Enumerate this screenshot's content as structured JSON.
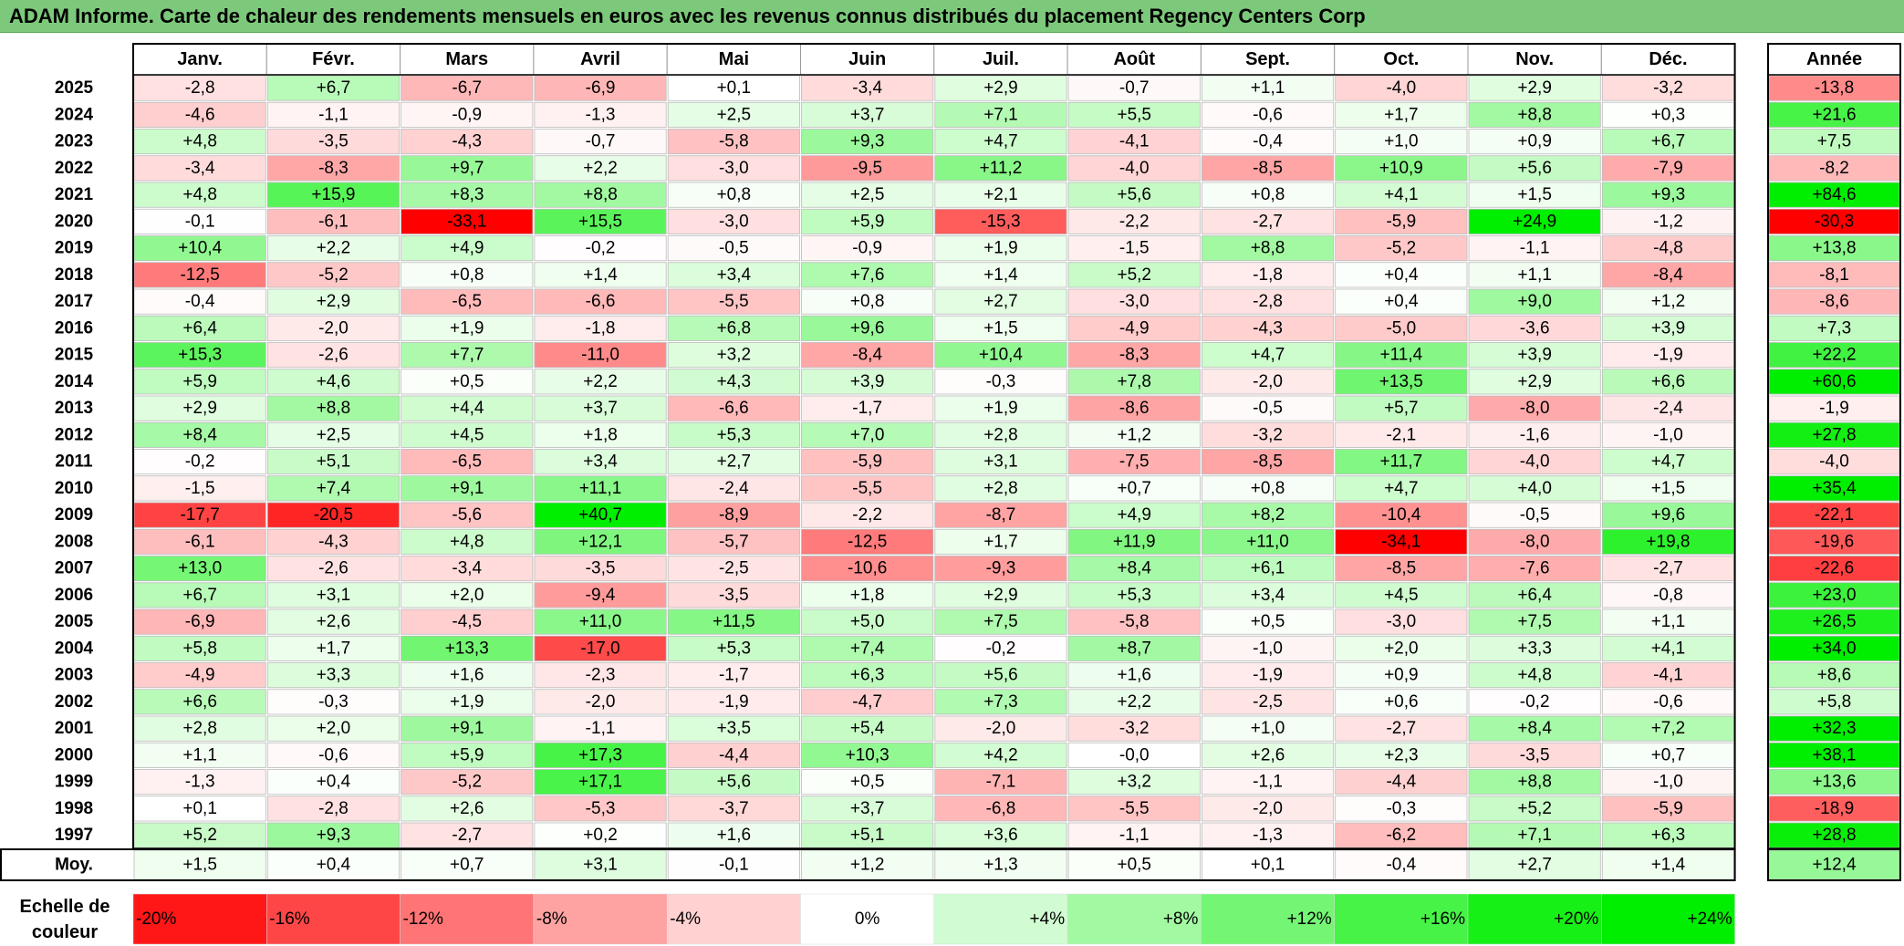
{
  "title": "ADAM Informe. Carte de chaleur des rendements mensuels en euros avec les revenus connus distribués du placement Regency Centers Corp",
  "chart_data": {
    "type": "heatmap",
    "title": "ADAM Informe. Carte de chaleur des rendements mensuels en euros avec les revenus connus distribués du placement Regency Centers Corp",
    "months": [
      "Janv.",
      "Févr.",
      "Mars",
      "Avril",
      "Mai",
      "Juin",
      "Juil.",
      "Août",
      "Sept.",
      "Oct.",
      "Nov.",
      "Déc."
    ],
    "year_header": "Année",
    "rows": [
      {
        "year": "2025",
        "values": [
          "-2,8",
          "+6,7",
          "-6,7",
          "-6,9",
          "+0,1",
          "-3,4",
          "+2,9",
          "-0,7",
          "+1,1",
          "-4,0",
          "+2,9",
          "-3,2"
        ],
        "annual": "-13,8"
      },
      {
        "year": "2024",
        "values": [
          "-4,6",
          "-1,1",
          "-0,9",
          "-1,3",
          "+2,5",
          "+3,7",
          "+7,1",
          "+5,5",
          "-0,6",
          "+1,7",
          "+8,8",
          "+0,3"
        ],
        "annual": "+21,6"
      },
      {
        "year": "2023",
        "values": [
          "+4,8",
          "-3,5",
          "-4,3",
          "-0,7",
          "-5,8",
          "+9,3",
          "+4,7",
          "-4,1",
          "-0,4",
          "+1,0",
          "+0,9",
          "+6,7"
        ],
        "annual": "+7,5"
      },
      {
        "year": "2022",
        "values": [
          "-3,4",
          "-8,3",
          "+9,7",
          "+2,2",
          "-3,0",
          "-9,5",
          "+11,2",
          "-4,0",
          "-8,5",
          "+10,9",
          "+5,6",
          "-7,9"
        ],
        "annual": "-8,2"
      },
      {
        "year": "2021",
        "values": [
          "+4,8",
          "+15,9",
          "+8,3",
          "+8,8",
          "+0,8",
          "+2,5",
          "+2,1",
          "+5,6",
          "+0,8",
          "+4,1",
          "+1,5",
          "+9,3"
        ],
        "annual": "+84,6"
      },
      {
        "year": "2020",
        "values": [
          "-0,1",
          "-6,1",
          "-33,1",
          "+15,5",
          "-3,0",
          "+5,9",
          "-15,3",
          "-2,2",
          "-2,7",
          "-5,9",
          "+24,9",
          "-1,2"
        ],
        "annual": "-30,3"
      },
      {
        "year": "2019",
        "values": [
          "+10,4",
          "+2,2",
          "+4,9",
          "-0,2",
          "-0,5",
          "-0,9",
          "+1,9",
          "-1,5",
          "+8,8",
          "-5,2",
          "-1,1",
          "-4,8"
        ],
        "annual": "+13,8"
      },
      {
        "year": "2018",
        "values": [
          "-12,5",
          "-5,2",
          "+0,8",
          "+1,4",
          "+3,4",
          "+7,6",
          "+1,4",
          "+5,2",
          "-1,8",
          "+0,4",
          "+1,1",
          "-8,4"
        ],
        "annual": "-8,1"
      },
      {
        "year": "2017",
        "values": [
          "-0,4",
          "+2,9",
          "-6,5",
          "-6,6",
          "-5,5",
          "+0,8",
          "+2,7",
          "-3,0",
          "-2,8",
          "+0,4",
          "+9,0",
          "+1,2"
        ],
        "annual": "-8,6"
      },
      {
        "year": "2016",
        "values": [
          "+6,4",
          "-2,0",
          "+1,9",
          "-1,8",
          "+6,8",
          "+9,6",
          "+1,5",
          "-4,9",
          "-4,3",
          "-5,0",
          "-3,6",
          "+3,9"
        ],
        "annual": "+7,3"
      },
      {
        "year": "2015",
        "values": [
          "+15,3",
          "-2,6",
          "+7,7",
          "-11,0",
          "+3,2",
          "-8,4",
          "+10,4",
          "-8,3",
          "+4,7",
          "+11,4",
          "+3,9",
          "-1,9"
        ],
        "annual": "+22,2"
      },
      {
        "year": "2014",
        "values": [
          "+5,9",
          "+4,6",
          "+0,5",
          "+2,2",
          "+4,3",
          "+3,9",
          "-0,3",
          "+7,8",
          "-2,0",
          "+13,5",
          "+2,9",
          "+6,6"
        ],
        "annual": "+60,6"
      },
      {
        "year": "2013",
        "values": [
          "+2,9",
          "+8,8",
          "+4,4",
          "+3,7",
          "-6,6",
          "-1,7",
          "+1,9",
          "-8,6",
          "-0,5",
          "+5,7",
          "-8,0",
          "-2,4"
        ],
        "annual": "-1,9"
      },
      {
        "year": "2012",
        "values": [
          "+8,4",
          "+2,5",
          "+4,5",
          "+1,8",
          "+5,3",
          "+7,0",
          "+2,8",
          "+1,2",
          "-3,2",
          "-2,1",
          "-1,6",
          "-1,0"
        ],
        "annual": "+27,8"
      },
      {
        "year": "2011",
        "values": [
          "-0,2",
          "+5,1",
          "-6,5",
          "+3,4",
          "+2,7",
          "-5,9",
          "+3,1",
          "-7,5",
          "-8,5",
          "+11,7",
          "-4,0",
          "+4,7"
        ],
        "annual": "-4,0"
      },
      {
        "year": "2010",
        "values": [
          "-1,5",
          "+7,4",
          "+9,1",
          "+11,1",
          "-2,4",
          "-5,5",
          "+2,8",
          "+0,7",
          "+0,8",
          "+4,7",
          "+4,0",
          "+1,5"
        ],
        "annual": "+35,4"
      },
      {
        "year": "2009",
        "values": [
          "-17,7",
          "-20,5",
          "-5,6",
          "+40,7",
          "-8,9",
          "-2,2",
          "-8,7",
          "+4,9",
          "+8,2",
          "-10,4",
          "-0,5",
          "+9,6"
        ],
        "annual": "-22,1"
      },
      {
        "year": "2008",
        "values": [
          "-6,1",
          "-4,3",
          "+4,8",
          "+12,1",
          "-5,7",
          "-12,5",
          "+1,7",
          "+11,9",
          "+11,0",
          "-34,1",
          "-8,0",
          "+19,8"
        ],
        "annual": "-19,6"
      },
      {
        "year": "2007",
        "values": [
          "+13,0",
          "-2,6",
          "-3,4",
          "-3,5",
          "-2,5",
          "-10,6",
          "-9,3",
          "+8,4",
          "+6,1",
          "-8,5",
          "-7,6",
          "-2,7"
        ],
        "annual": "-22,6"
      },
      {
        "year": "2006",
        "values": [
          "+6,7",
          "+3,1",
          "+2,0",
          "-9,4",
          "-3,5",
          "+1,8",
          "+2,9",
          "+5,3",
          "+3,4",
          "+4,5",
          "+6,4",
          "-0,8"
        ],
        "annual": "+23,0"
      },
      {
        "year": "2005",
        "values": [
          "-6,9",
          "+2,6",
          "-4,5",
          "+11,0",
          "+11,5",
          "+5,0",
          "+7,5",
          "-5,8",
          "+0,5",
          "-3,0",
          "+7,5",
          "+1,1"
        ],
        "annual": "+26,5"
      },
      {
        "year": "2004",
        "values": [
          "+5,8",
          "+1,7",
          "+13,3",
          "-17,0",
          "+5,3",
          "+7,4",
          "-0,2",
          "+8,7",
          "-1,0",
          "+2,0",
          "+3,3",
          "+4,1"
        ],
        "annual": "+34,0"
      },
      {
        "year": "2003",
        "values": [
          "-4,9",
          "+3,3",
          "+1,6",
          "-2,3",
          "-1,7",
          "+6,3",
          "+5,6",
          "+1,6",
          "-1,9",
          "+0,9",
          "+4,8",
          "-4,1"
        ],
        "annual": "+8,6"
      },
      {
        "year": "2002",
        "values": [
          "+6,6",
          "-0,3",
          "+1,9",
          "-2,0",
          "-1,9",
          "-4,7",
          "+7,3",
          "+2,2",
          "-2,5",
          "+0,6",
          "-0,2",
          "-0,6"
        ],
        "annual": "+5,8"
      },
      {
        "year": "2001",
        "values": [
          "+2,8",
          "+2,0",
          "+9,1",
          "-1,1",
          "+3,5",
          "+5,4",
          "-2,0",
          "-3,2",
          "+1,0",
          "-2,7",
          "+8,4",
          "+7,2"
        ],
        "annual": "+32,3"
      },
      {
        "year": "2000",
        "values": [
          "+1,1",
          "-0,6",
          "+5,9",
          "+17,3",
          "-4,4",
          "+10,3",
          "+4,2",
          "-0,0",
          "+2,6",
          "+2,3",
          "-3,5",
          "+0,7"
        ],
        "annual": "+38,1"
      },
      {
        "year": "1999",
        "values": [
          "-1,3",
          "+0,4",
          "-5,2",
          "+17,1",
          "+5,6",
          "+0,5",
          "-7,1",
          "+3,2",
          "-1,1",
          "-4,4",
          "+8,8",
          "-1,0"
        ],
        "annual": "+13,6"
      },
      {
        "year": "1998",
        "values": [
          "+0,1",
          "-2,8",
          "+2,6",
          "-5,3",
          "-3,7",
          "+3,7",
          "-6,8",
          "-5,5",
          "-2,0",
          "-0,3",
          "+5,2",
          "-5,9"
        ],
        "annual": "-18,9"
      },
      {
        "year": "1997",
        "values": [
          "+5,2",
          "+9,3",
          "-2,7",
          "+0,2",
          "+1,6",
          "+5,1",
          "+3,6",
          "-1,1",
          "-1,3",
          "-6,2",
          "+7,1",
          "+6,3"
        ],
        "annual": "+28,8"
      }
    ],
    "average": {
      "label": "Moy.",
      "values": [
        "+1,5",
        "+0,4",
        "+0,7",
        "+3,1",
        "-0,1",
        "+1,2",
        "+1,3",
        "+0,5",
        "+0,1",
        "-0,4",
        "+2,7",
        "+1,4"
      ],
      "annual": "+12,4"
    },
    "scale": {
      "label_line1": "Echelle de",
      "label_line2": "couleur",
      "stops": [
        "-20%",
        "-16%",
        "-12%",
        "-8%",
        "-4%",
        "0%",
        "+4%",
        "+8%",
        "+12%",
        "+16%",
        "+20%",
        "+24%"
      ]
    },
    "colors": {
      "negative_max": "#ff0000",
      "neutral": "#ffffff",
      "positive_max": "#00ee00",
      "title_bar": "#7dc97b"
    }
  }
}
